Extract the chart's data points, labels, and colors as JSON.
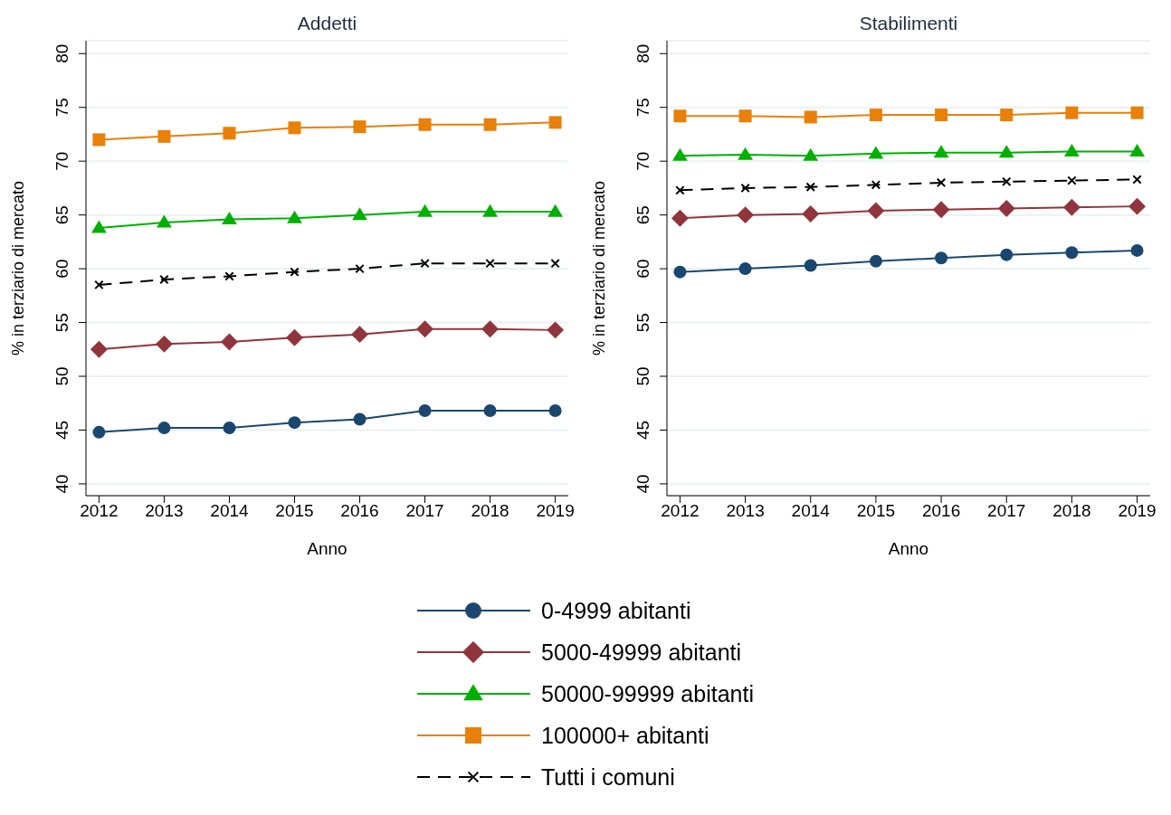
{
  "chart_data": [
    {
      "type": "line",
      "title": "Addetti",
      "xlabel": "Anno",
      "ylabel": "% in terziario di mercato",
      "x": [
        2012,
        2013,
        2014,
        2015,
        2016,
        2017,
        2018,
        2019
      ],
      "xlim": [
        2011.8,
        2019.2
      ],
      "xticks": [
        2012,
        2013,
        2014,
        2015,
        2016,
        2017,
        2018,
        2019
      ],
      "ylim": [
        38.9,
        81.2
      ],
      "yticks": [
        40,
        45,
        50,
        55,
        60,
        65,
        70,
        75,
        80
      ],
      "grid": "y",
      "legend": "bottom",
      "series": [
        {
          "name": "0-4999 abitanti",
          "color": "#1a476f",
          "marker": "circle",
          "line_style": "solid",
          "values": [
            44.8,
            45.2,
            45.2,
            45.7,
            46.0,
            46.8,
            46.8,
            46.8
          ]
        },
        {
          "name": "5000-49999 abitanti",
          "color": "#90353b",
          "marker": "diamond",
          "line_style": "solid",
          "values": [
            52.5,
            53.0,
            53.2,
            53.6,
            53.9,
            54.4,
            54.4,
            54.3
          ]
        },
        {
          "name": "50000-99999 abitanti",
          "color": "#00b000",
          "marker": "triangle",
          "line_style": "solid",
          "values": [
            63.8,
            64.3,
            64.6,
            64.7,
            65.0,
            65.3,
            65.3,
            65.3
          ]
        },
        {
          "name": "100000+ abitanti",
          "color": "#e8800a",
          "marker": "square",
          "line_style": "solid",
          "values": [
            72.0,
            72.3,
            72.6,
            73.1,
            73.2,
            73.4,
            73.4,
            73.6
          ]
        },
        {
          "name": "Tutti i comuni",
          "color": "#000000",
          "marker": "cross",
          "line_style": "dashed",
          "values": [
            58.5,
            59.0,
            59.3,
            59.7,
            60.0,
            60.5,
            60.5,
            60.5
          ]
        }
      ]
    },
    {
      "type": "line",
      "title": "Stabilimenti",
      "xlabel": "Anno",
      "ylabel": "% in terziario di mercato",
      "x": [
        2012,
        2013,
        2014,
        2015,
        2016,
        2017,
        2018,
        2019
      ],
      "xlim": [
        2011.8,
        2019.2
      ],
      "xticks": [
        2012,
        2013,
        2014,
        2015,
        2016,
        2017,
        2018,
        2019
      ],
      "ylim": [
        38.9,
        81.2
      ],
      "yticks": [
        40,
        45,
        50,
        55,
        60,
        65,
        70,
        75,
        80
      ],
      "grid": "y",
      "series": [
        {
          "color": "#1a476f",
          "marker": "circle",
          "line_style": "solid",
          "values": [
            59.7,
            60.0,
            60.3,
            60.7,
            61.0,
            61.3,
            61.5,
            61.7
          ]
        },
        {
          "color": "#90353b",
          "marker": "diamond",
          "line_style": "solid",
          "values": [
            64.7,
            65.0,
            65.1,
            65.4,
            65.5,
            65.6,
            65.7,
            65.8
          ]
        },
        {
          "color": "#00b000",
          "marker": "triangle",
          "line_style": "solid",
          "values": [
            70.5,
            70.6,
            70.5,
            70.7,
            70.8,
            70.8,
            70.9,
            70.9
          ]
        },
        {
          "color": "#e8800a",
          "marker": "square",
          "line_style": "solid",
          "values": [
            74.2,
            74.2,
            74.1,
            74.3,
            74.3,
            74.3,
            74.5,
            74.5
          ]
        },
        {
          "color": "#000000",
          "marker": "cross",
          "line_style": "dashed",
          "values": [
            67.3,
            67.5,
            67.6,
            67.8,
            68.0,
            68.1,
            68.2,
            68.3
          ]
        }
      ]
    }
  ]
}
